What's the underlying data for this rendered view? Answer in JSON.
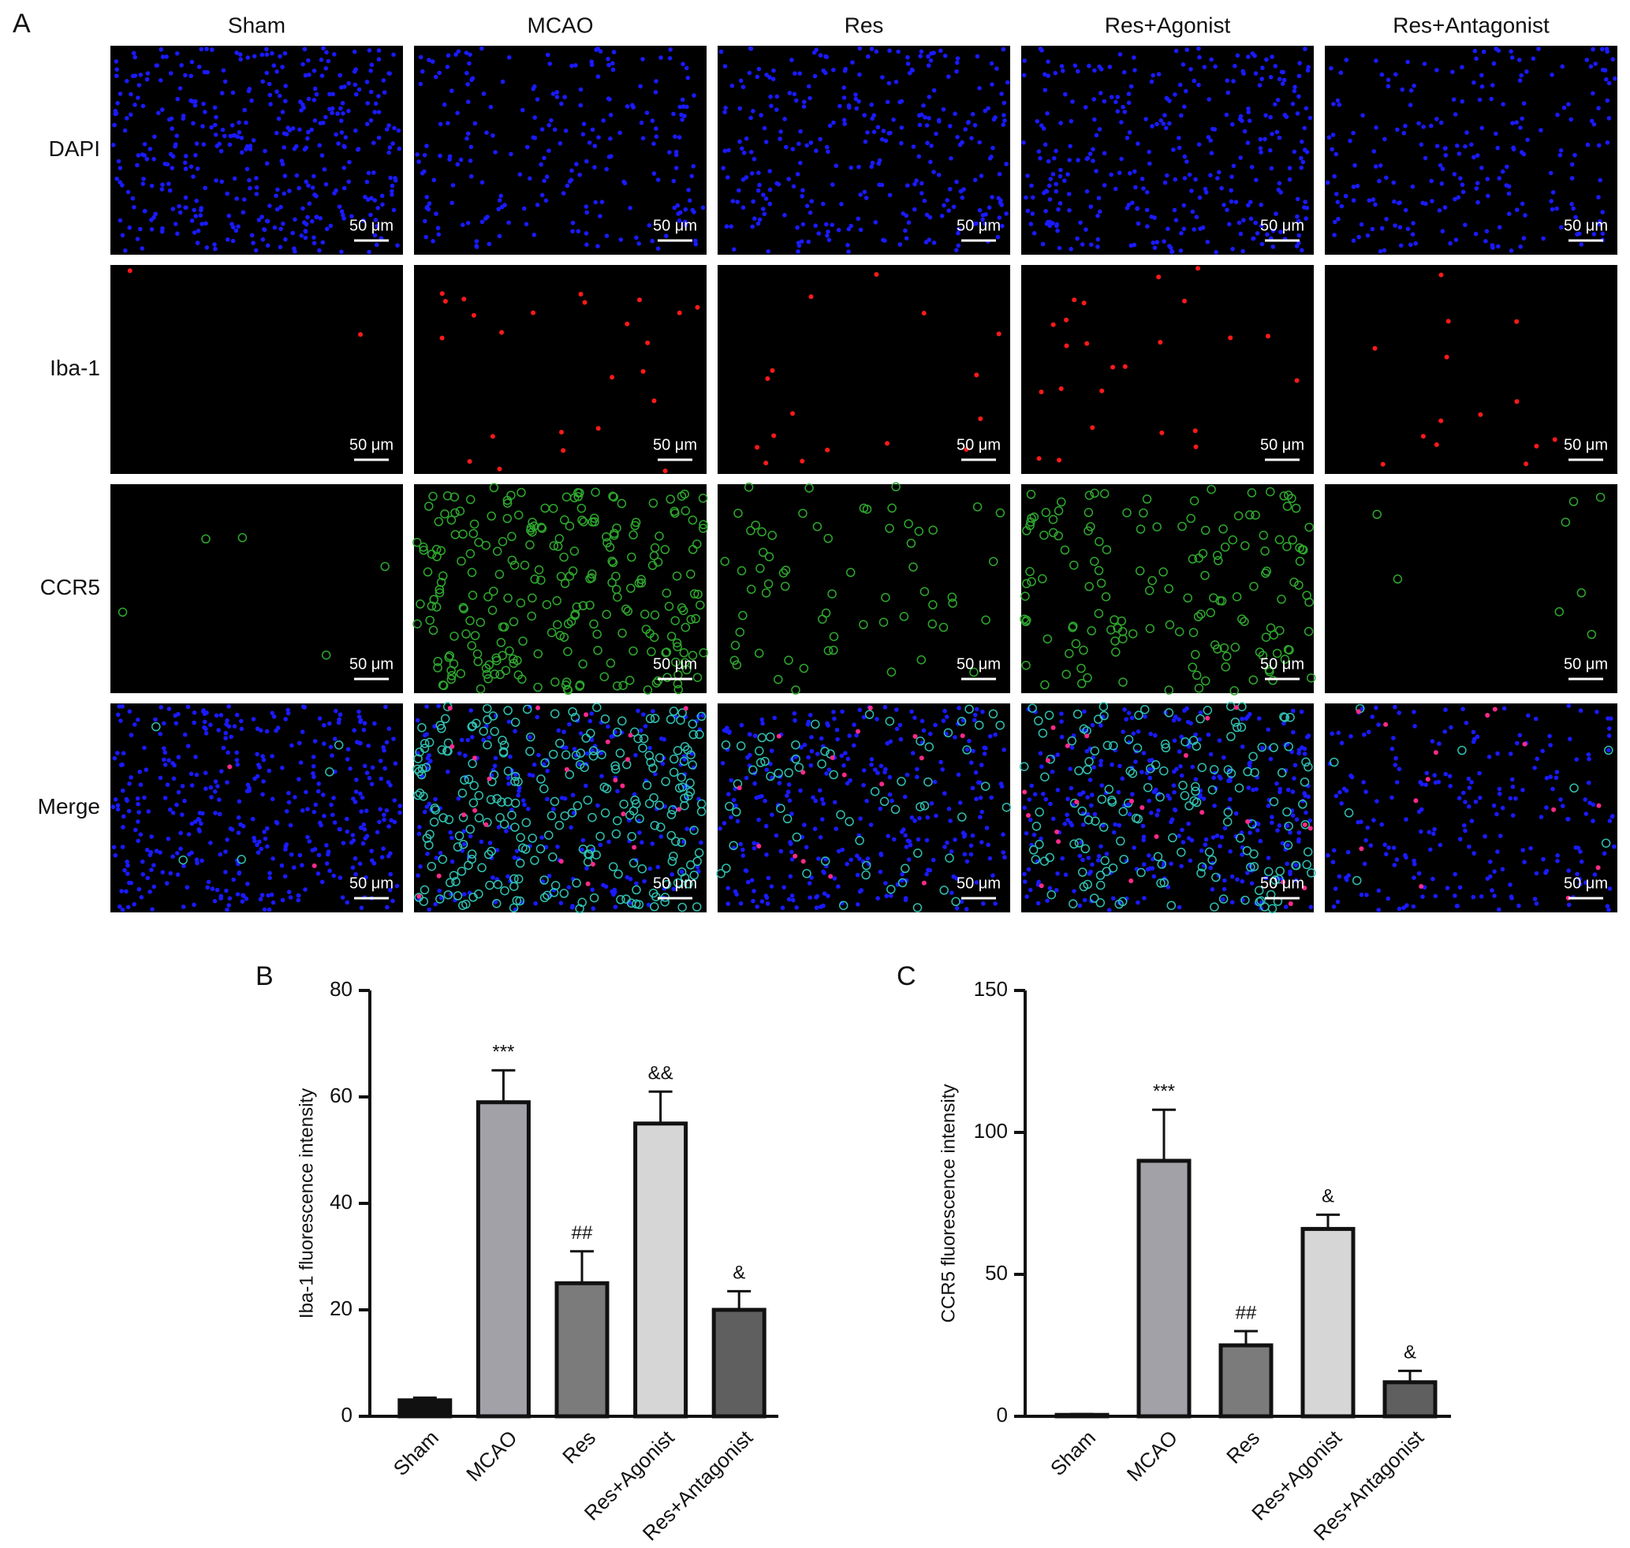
{
  "panel_a": {
    "label": "A",
    "columns": [
      "Sham",
      "MCAO",
      "Res",
      "Res+Agonist",
      "Res+Antagonist"
    ],
    "rows": [
      "DAPI",
      "Iba-1",
      "CCR5",
      "Merge"
    ],
    "scale_bar": "50 μm"
  },
  "chart_data": [
    {
      "type": "bar",
      "panel_label": "B",
      "y_label": "Iba-1 fluorescence intensity",
      "categories": [
        "Sham",
        "MCAO",
        "Res",
        "Res+Agonist",
        "Res+Antagonist"
      ],
      "values": [
        3,
        59,
        25,
        55,
        20
      ],
      "errors": [
        0.5,
        6,
        6,
        6,
        3.5
      ],
      "annotations": [
        null,
        "***",
        "##",
        "&&",
        "&"
      ],
      "colors": [
        "#111111",
        "#a1a1a7",
        "#7b7b7b",
        "#d6d6d6",
        "#5f5f5f"
      ],
      "ylim": [
        0,
        80
      ],
      "yticks": [
        0,
        20,
        40,
        60,
        80
      ]
    },
    {
      "type": "bar",
      "panel_label": "C",
      "y_label": "CCR5 fluorescence intensity",
      "categories": [
        "Sham",
        "MCAO",
        "Res",
        "Res+Agonist",
        "Res+Antagonist"
      ],
      "values": [
        0.5,
        90,
        25,
        66,
        12
      ],
      "errors": [
        0.3,
        18,
        5,
        5,
        4
      ],
      "annotations": [
        null,
        "***",
        "##",
        "&",
        "&"
      ],
      "colors": [
        "#111111",
        "#a1a1a7",
        "#7b7b7b",
        "#d6d6d6",
        "#5f5f5f"
      ],
      "ylim": [
        0,
        150
      ],
      "yticks": [
        0,
        50,
        100,
        150
      ]
    }
  ]
}
